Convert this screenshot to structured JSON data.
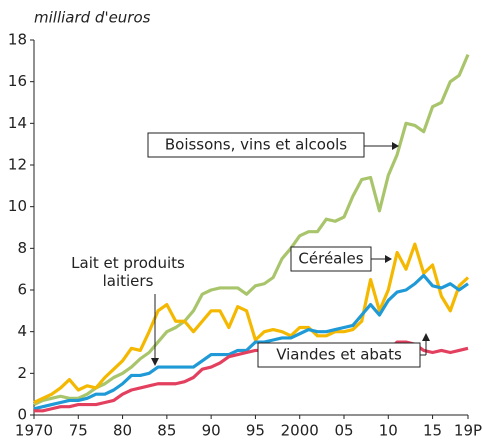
{
  "chart_data": {
    "type": "line",
    "ylabel": "milliard d'euros",
    "x": [
      1970,
      1971,
      1972,
      1973,
      1974,
      1975,
      1976,
      1977,
      1978,
      1979,
      1980,
      1981,
      1982,
      1983,
      1984,
      1985,
      1986,
      1987,
      1988,
      1989,
      1990,
      1991,
      1992,
      1993,
      1994,
      1995,
      1996,
      1997,
      1998,
      1999,
      2000,
      2001,
      2002,
      2003,
      2004,
      2005,
      2006,
      2007,
      2008,
      2009,
      2010,
      2011,
      2012,
      2013,
      2014,
      2015,
      2016,
      2017,
      2018,
      2019
    ],
    "series": [
      {
        "name": "Boissons, vins et alcools",
        "color": "#a9c56b",
        "values": [
          0.5,
          0.7,
          0.8,
          0.9,
          0.8,
          0.8,
          1.0,
          1.3,
          1.5,
          1.8,
          2.0,
          2.3,
          2.7,
          3.0,
          3.5,
          4.0,
          4.2,
          4.5,
          5.0,
          5.8,
          6.0,
          6.1,
          6.1,
          6.1,
          5.8,
          6.2,
          6.3,
          6.6,
          7.5,
          8.0,
          8.6,
          8.8,
          8.8,
          9.4,
          9.3,
          9.5,
          10.5,
          11.3,
          11.4,
          9.8,
          11.5,
          12.5,
          14.0,
          13.9,
          13.6,
          14.8,
          15.0,
          16.0,
          16.3,
          17.3
        ]
      },
      {
        "name": "Céréales",
        "color": "#f5b800",
        "values": [
          0.6,
          0.8,
          1.0,
          1.3,
          1.7,
          1.2,
          1.4,
          1.3,
          1.8,
          2.2,
          2.6,
          3.2,
          3.1,
          4.0,
          5.0,
          5.3,
          4.5,
          4.5,
          4.0,
          4.5,
          5.0,
          5.0,
          4.2,
          5.2,
          5.0,
          3.6,
          4.0,
          4.1,
          4.0,
          3.8,
          4.2,
          4.2,
          3.8,
          3.8,
          4.0,
          4.0,
          4.1,
          4.5,
          6.5,
          5.0,
          6.0,
          7.8,
          7.0,
          8.2,
          6.8,
          7.2,
          5.7,
          5.0,
          6.2,
          6.6
        ]
      },
      {
        "name": "Lait et produits laitiers",
        "color": "#1f9ad6",
        "values": [
          0.3,
          0.4,
          0.5,
          0.6,
          0.7,
          0.7,
          0.8,
          1.0,
          1.0,
          1.2,
          1.5,
          1.9,
          1.9,
          2.0,
          2.3,
          2.3,
          2.3,
          2.3,
          2.3,
          2.6,
          2.9,
          2.9,
          2.9,
          3.1,
          3.1,
          3.5,
          3.5,
          3.6,
          3.7,
          3.7,
          3.9,
          4.1,
          4.0,
          4.0,
          4.1,
          4.2,
          4.3,
          4.8,
          5.3,
          4.8,
          5.5,
          5.9,
          6.0,
          6.3,
          6.7,
          6.2,
          6.1,
          6.3,
          6.0,
          6.3
        ]
      },
      {
        "name": "Viandes et abats",
        "color": "#e3405f",
        "values": [
          0.2,
          0.2,
          0.3,
          0.4,
          0.4,
          0.5,
          0.5,
          0.5,
          0.6,
          0.7,
          1.0,
          1.2,
          1.3,
          1.4,
          1.5,
          1.5,
          1.5,
          1.6,
          1.8,
          2.2,
          2.3,
          2.5,
          2.8,
          2.9,
          3.0,
          3.1,
          3.1,
          3.2,
          3.0,
          3.0,
          3.1,
          2.8,
          2.8,
          2.8,
          2.8,
          2.8,
          2.8,
          2.9,
          3.2,
          3.0,
          3.1,
          3.5,
          3.5,
          3.4,
          3.1,
          3.0,
          3.1,
          3.0,
          3.1,
          3.2
        ]
      }
    ],
    "xlim": [
      1970,
      2019
    ],
    "xticks": [
      1970,
      {
        "value": 1975,
        "label": "75"
      },
      {
        "value": 1980,
        "label": "80"
      },
      {
        "value": 1985,
        "label": "85"
      },
      {
        "value": 1990,
        "label": "90"
      },
      {
        "value": 1995,
        "label": "95"
      },
      2000,
      {
        "value": 2005,
        "label": "05"
      },
      {
        "value": 2010,
        "label": "10"
      },
      {
        "value": 2015,
        "label": "15"
      },
      {
        "value": 2019,
        "label": "19P"
      }
    ],
    "ylim": [
      0,
      18
    ],
    "yticks": [
      0,
      2,
      4,
      6,
      8,
      10,
      12,
      14,
      16,
      18
    ],
    "grid": false
  }
}
